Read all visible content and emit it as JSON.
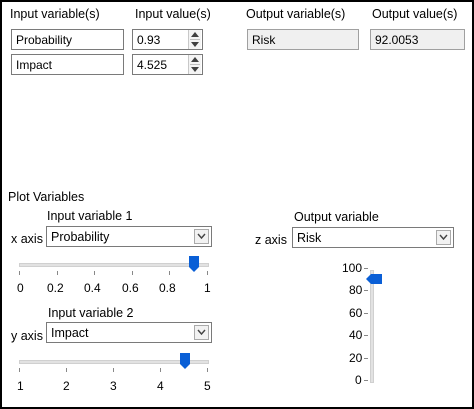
{
  "header": {
    "input_variables_label": "Input variable(s)",
    "input_values_label": "Input value(s)",
    "output_variables_label": "Output variable(s)",
    "output_values_label": "Output value(s)"
  },
  "inputs": [
    {
      "name": "Probability",
      "value": "0.93"
    },
    {
      "name": "Impact",
      "value": "4.525"
    }
  ],
  "outputs": [
    {
      "name": "Risk",
      "value": "92.0053"
    }
  ],
  "plot": {
    "section_title": "Plot Variables",
    "x_axis_label": "x axis",
    "y_axis_label": "y axis",
    "z_axis_label": "z axis",
    "input1_label": "Input variable 1",
    "input2_label": "Input variable 2",
    "output_label": "Output variable",
    "x_select_value": "Probability",
    "y_select_value": "Impact",
    "z_select_value": "Risk",
    "x_slider": {
      "min": 0,
      "max": 1,
      "value": 0.93,
      "ticks": [
        "0",
        "0.2",
        "0.4",
        "0.6",
        "0.8",
        "1"
      ]
    },
    "y_slider": {
      "min": 1,
      "max": 5,
      "value": 4.525,
      "ticks": [
        "1",
        "2",
        "3",
        "4",
        "5"
      ]
    },
    "z_slider": {
      "min": 0,
      "max": 100,
      "value": 92.0053,
      "ticks": [
        "0",
        "20",
        "40",
        "60",
        "80",
        "100"
      ]
    }
  },
  "colors": {
    "slider_thumb": "#0a5fd6",
    "border": "#7a7a7a",
    "readonly_bg": "#f0f0f0"
  }
}
